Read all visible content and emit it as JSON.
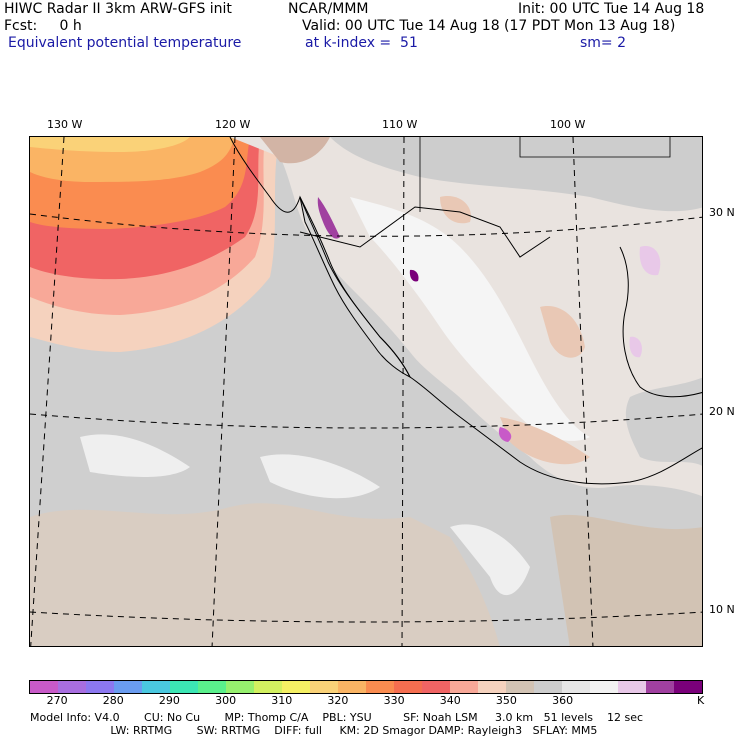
{
  "header": {
    "line1_left": "HIWC Radar II 3km ARW-GFS init",
    "line1_mid": "NCAR/MMM",
    "line1_right": "Init: 00 UTC Tue 14 Aug 18",
    "line2_left": "Fcst:     0 h",
    "line2_right": "Valid: 00 UTC Tue 14 Aug 18 (17 PDT Mon 13 Aug 18)",
    "line3_left": "Equivalent potential temperature",
    "line3_mid": "at k-index =  51",
    "line3_right": "sm= 2"
  },
  "map": {
    "longitude_labels": [
      "130 W",
      "120 W",
      "110 W",
      "100 W"
    ],
    "latitude_labels": [
      "30 N",
      "20 N",
      "10 N"
    ],
    "colors": {
      "background_sea": "#cfcfcf",
      "land_gray": "#cdcdcd",
      "warm_tan": "#e9c8b5",
      "white_cold": "#f2f2f2",
      "coastline": "#000000"
    }
  },
  "colorbar": {
    "colors": [
      "#c85ac8",
      "#a86ee0",
      "#8c78f0",
      "#6a9cf0",
      "#4ac8e0",
      "#3ce6b4",
      "#5af08c",
      "#96f06e",
      "#d2f060",
      "#f5f064",
      "#fad278",
      "#fab464",
      "#fa8c50",
      "#f56e50",
      "#f06464",
      "#f8a898",
      "#f5d2be",
      "#d2c3b4",
      "#cdcdcd",
      "#e6e6e6",
      "#f2f2f2",
      "#e8c8e8",
      "#a040a0",
      "#7a007a"
    ],
    "tick_labels": [
      "270",
      "280",
      "290",
      "300",
      "310",
      "320",
      "330",
      "340",
      "350",
      "360"
    ],
    "unit": "K"
  },
  "model_info": {
    "line1": "Model Info: V4.0       CU: No Cu       MP: Thomp C/A    PBL: YSU         SF: Noah LSM     3.0 km   51 levels    12 sec",
    "line2": "                       LW: RRTMG       SW: RRTMG    DIFF: full     KM: 2D Smagor DAMP: Rayleigh3   SFLAY: MM5"
  }
}
